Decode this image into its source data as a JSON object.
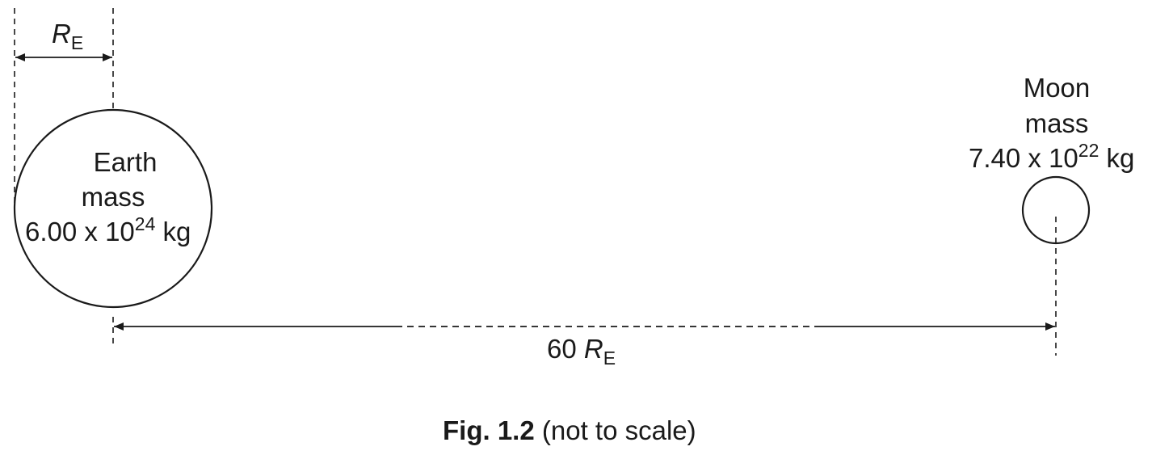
{
  "colors": {
    "ink": "#1a1a1a",
    "background": "#ffffff"
  },
  "radius_label": {
    "symbol": "R",
    "subscript": "E"
  },
  "earth": {
    "name": "Earth",
    "mass_label": "mass",
    "mass_coefficient": "6.00 x 10",
    "mass_exponent": "24",
    "mass_unit": "kg"
  },
  "moon": {
    "name": "Moon",
    "mass_label": "mass",
    "mass_coefficient": "7.40 x 10",
    "mass_exponent": "22",
    "mass_unit": "kg"
  },
  "distance_label": {
    "multiplier": "60",
    "symbol": "R",
    "subscript": "E"
  },
  "caption": {
    "figure": "Fig. 1.2",
    "note": "(not to scale)"
  }
}
